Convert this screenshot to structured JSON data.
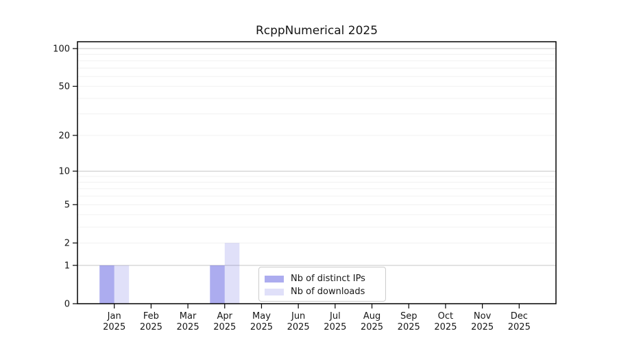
{
  "chart_data": {
    "type": "bar",
    "title": "RcppNumerical 2025",
    "categories": [
      "Jan",
      "Feb",
      "Mar",
      "Apr",
      "May",
      "Jun",
      "Jul",
      "Aug",
      "Sep",
      "Oct",
      "Nov",
      "Dec"
    ],
    "category_year": "2025",
    "series": [
      {
        "name": "Nb of distinct IPs",
        "color": "rgba(70,70,220,0.45)",
        "color_hex_effective": "#a6a6ee",
        "values": [
          1,
          0,
          0,
          1,
          0,
          0,
          0,
          0,
          0,
          0,
          0,
          0
        ]
      },
      {
        "name": "Nb of downloads",
        "color": "rgba(70,70,220,0.17)",
        "color_hex_effective": "#dcdcf8",
        "values": [
          1,
          0,
          0,
          2,
          0,
          0,
          0,
          0,
          0,
          0,
          0,
          0
        ]
      }
    ],
    "yscale": "log1p",
    "ylim": [
      0,
      113
    ],
    "y_tick_values": [
      0,
      1,
      2,
      5,
      10,
      20,
      50,
      100
    ],
    "y_tick_labels": [
      "0",
      "1",
      "2",
      "5",
      "10",
      "20",
      "50",
      "100"
    ],
    "grid_major_values": [
      1,
      10,
      100
    ],
    "grid_minor_values": [
      2,
      3,
      4,
      5,
      6,
      7,
      8,
      9,
      20,
      30,
      40,
      50,
      60,
      70,
      80,
      90
    ],
    "grid": "on",
    "legend_position": "bottom-center",
    "colors": {
      "frame": "#000000",
      "grid_major": "#c6c6c6",
      "grid_minor": "#f0f0f0",
      "tick_text": "#151515",
      "legend_border": "#cccccc"
    }
  }
}
